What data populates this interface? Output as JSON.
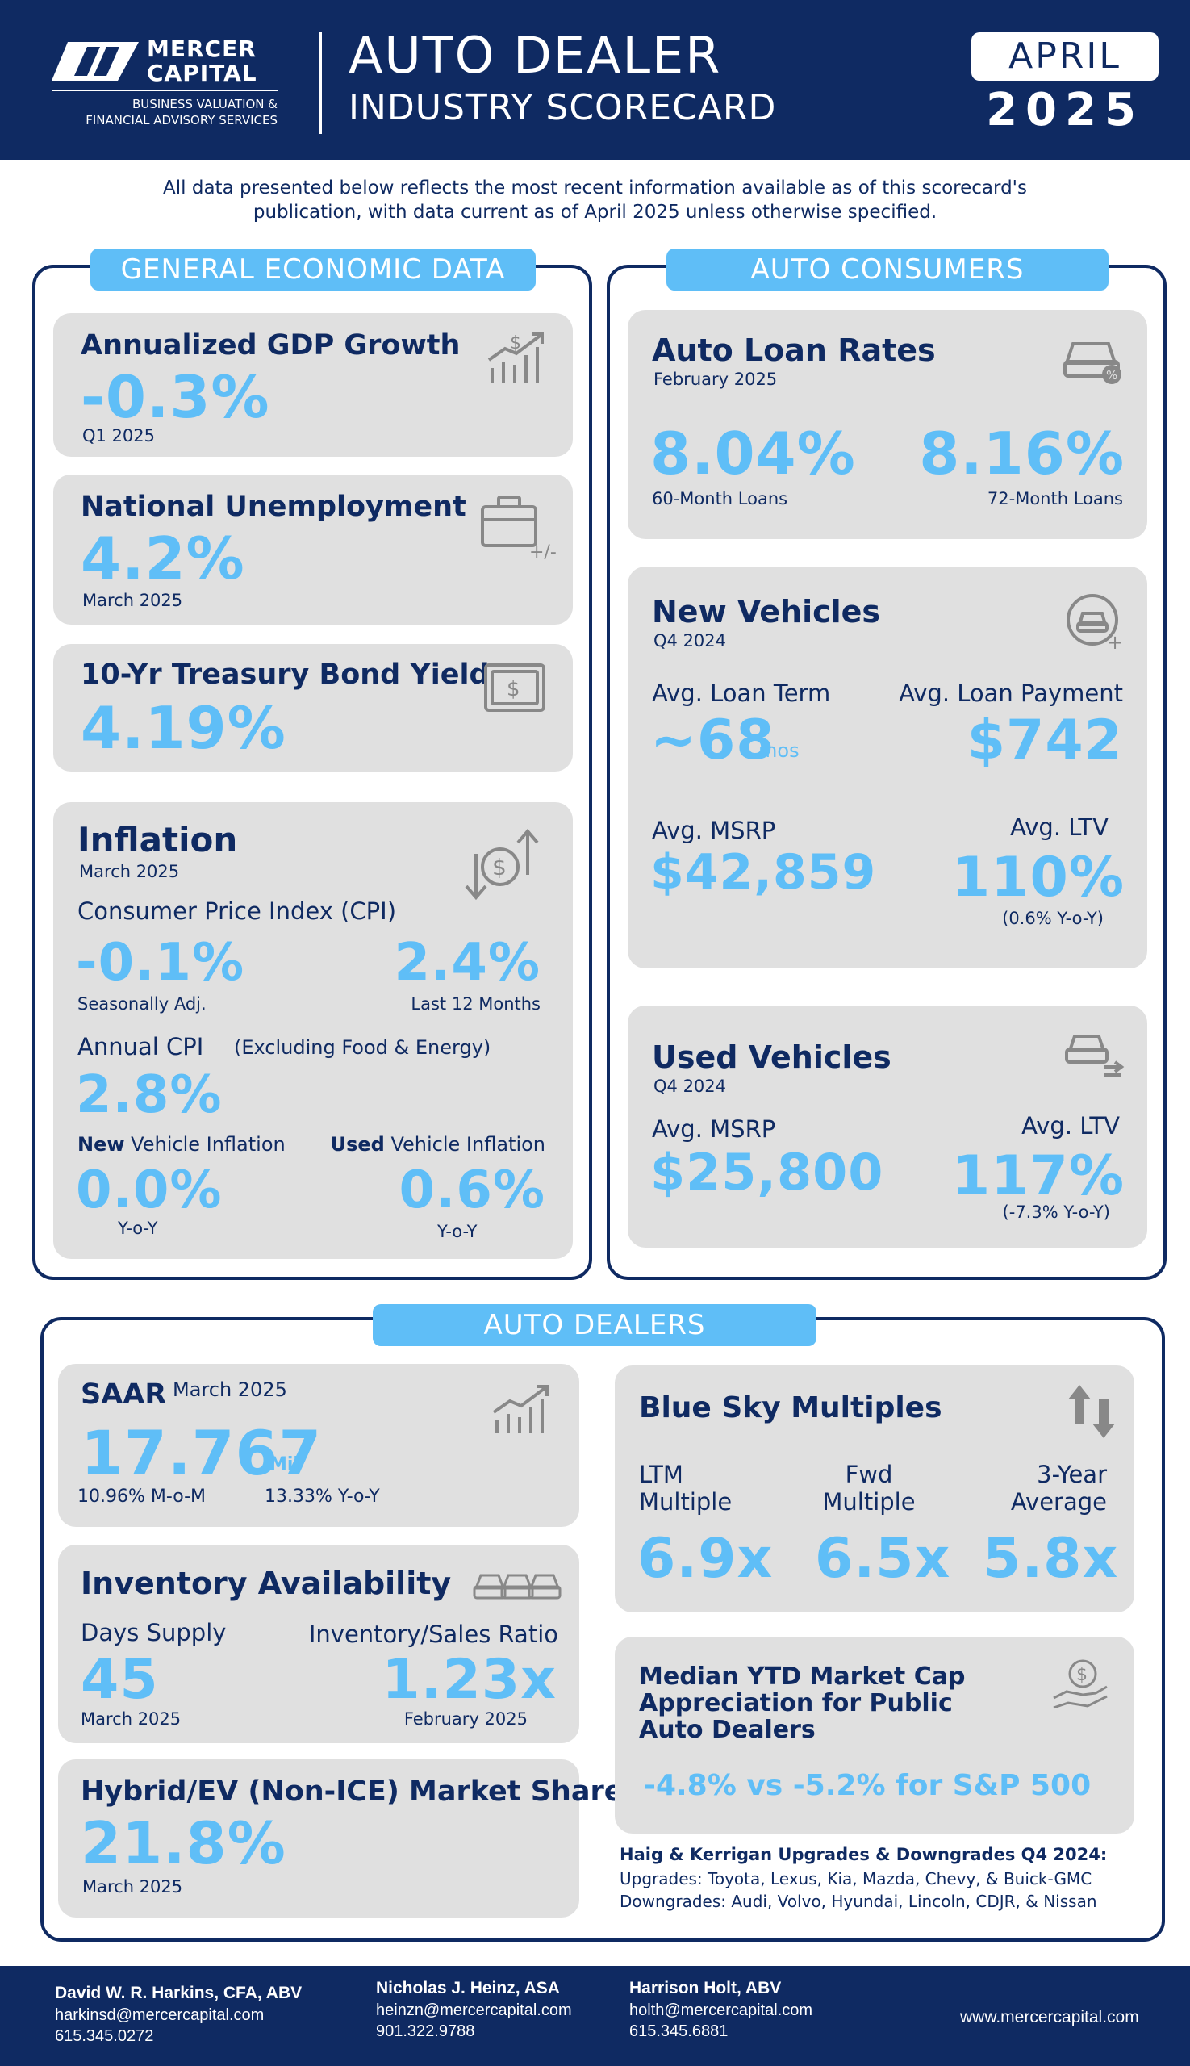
{
  "header": {
    "logo_line1": "MERCER",
    "logo_line2": "CAPITAL",
    "tagline1": "BUSINESS VALUATION &",
    "tagline2": "FINANCIAL ADVISORY SERVICES",
    "title1": "AUTO DEALER",
    "title2": "INDUSTRY SCORECARD",
    "month": "APRIL",
    "year": "2025"
  },
  "intro": {
    "line1": "All data presented below reflects the most recent information available as of this scorecard's",
    "line2": "publication, with data current as of April 2025 unless otherwise specified."
  },
  "general": {
    "heading": "GENERAL ECONOMIC DATA",
    "gdp": {
      "title": "Annualized GDP Growth",
      "value": "-0.3%",
      "period": "Q1 2025"
    },
    "unemployment": {
      "title": "National Unemployment",
      "value": "4.2%",
      "period": "March 2025",
      "icon_text": "+/-"
    },
    "treasury": {
      "title": "10-Yr Treasury Bond Yield",
      "value": "4.19%"
    },
    "inflation": {
      "title": "Inflation",
      "period": "March 2025",
      "cpi_label": "Consumer Price Index (CPI)",
      "cpi_sa_value": "-0.1%",
      "cpi_sa_label": "Seasonally Adj.",
      "cpi_12m_value": "2.4%",
      "cpi_12m_label": "Last 12 Months",
      "core_label": "Annual CPI",
      "core_note": "(Excluding Food & Energy)",
      "core_value": "2.8%",
      "new_bold": "New",
      "new_label": " Vehicle Inflation",
      "new_value": "0.0%",
      "new_sub": "Y-o-Y",
      "used_bold": "Used",
      "used_label": " Vehicle Inflation",
      "used_value": "0.6%",
      "used_sub": "Y-o-Y"
    }
  },
  "consumers": {
    "heading": "AUTO CONSUMERS",
    "loan_rates": {
      "title": "Auto Loan Rates",
      "period": "February 2025",
      "rate60": "8.04%",
      "label60": "60-Month Loans",
      "rate72": "8.16%",
      "label72": "72-Month Loans"
    },
    "new_vehicles": {
      "title": "New Vehicles",
      "period": "Q4 2024",
      "term_label": "Avg. Loan Term",
      "term_value": "~68",
      "term_unit": "mos",
      "payment_label": "Avg. Loan Payment",
      "payment_value": "$742",
      "msrp_label": "Avg. MSRP",
      "msrp_value": "$42,859",
      "ltv_label": "Avg. LTV",
      "ltv_value": "110%",
      "ltv_note": "(0.6% Y-o-Y)"
    },
    "used_vehicles": {
      "title": "Used Vehicles",
      "period": "Q4 2024",
      "msrp_label": "Avg. MSRP",
      "msrp_value": "$25,800",
      "ltv_label": "Avg. LTV",
      "ltv_value": "117%",
      "ltv_note": "(-7.3% Y-o-Y)"
    }
  },
  "dealers": {
    "heading": "AUTO DEALERS",
    "saar": {
      "title": "SAAR",
      "period": "March 2025",
      "value": "17.767",
      "unit": "Mil",
      "mom": "10.96% M-o-M",
      "yoy": "13.33% Y-o-Y"
    },
    "inventory": {
      "title": "Inventory Availability",
      "days_label": "Days Supply",
      "days_value": "45",
      "days_period": "March 2025",
      "ratio_label": "Inventory/Sales Ratio",
      "ratio_value": "1.23x",
      "ratio_period": "February 2025"
    },
    "hybrid": {
      "title": "Hybrid/EV (Non-ICE) Market Share",
      "value": "21.8%",
      "period": "March 2025"
    },
    "blue_sky": {
      "title": "Blue Sky Multiples",
      "ltm_l1": "LTM",
      "ltm_l2": "Multiple",
      "ltm_value": "6.9x",
      "fwd_l1": "Fwd",
      "fwd_l2": "Multiple",
      "fwd_value": "6.5x",
      "avg_l1": "3-Year",
      "avg_l2": "Average",
      "avg_value": "5.8x"
    },
    "market_cap": {
      "line1": "Median YTD Market Cap",
      "line2": "Appreciation for Public",
      "line3": "Auto Dealers",
      "value": "-4.8% vs -5.2% for S&P 500"
    },
    "haig": {
      "title": "Haig & Kerrigan Upgrades & Downgrades Q4 2024:",
      "upgrades": "Upgrades: Toyota, Lexus, Kia, Mazda, Chevy, & Buick-GMC",
      "downgrades": "Downgrades: Audi, Volvo, Hyundai, Lincoln, CDJR, & Nissan"
    }
  },
  "footer": {
    "contacts": [
      {
        "name": "David W. R. Harkins, CFA, ABV",
        "email": "harkinsd@mercercapital.com",
        "phone": "615.345.0272"
      },
      {
        "name": "Nicholas J. Heinz, ASA",
        "email": "heinzn@mercercapital.com",
        "phone": "901.322.9788"
      },
      {
        "name": "Harrison Holt, ABV",
        "email": "holth@mercercapital.com",
        "phone": "615.345.6881"
      }
    ],
    "website": "www.mercercapital.com"
  },
  "colors": {
    "navy": "#0f2a62",
    "accent": "#5fbef7",
    "card": "#e0e0e0"
  }
}
